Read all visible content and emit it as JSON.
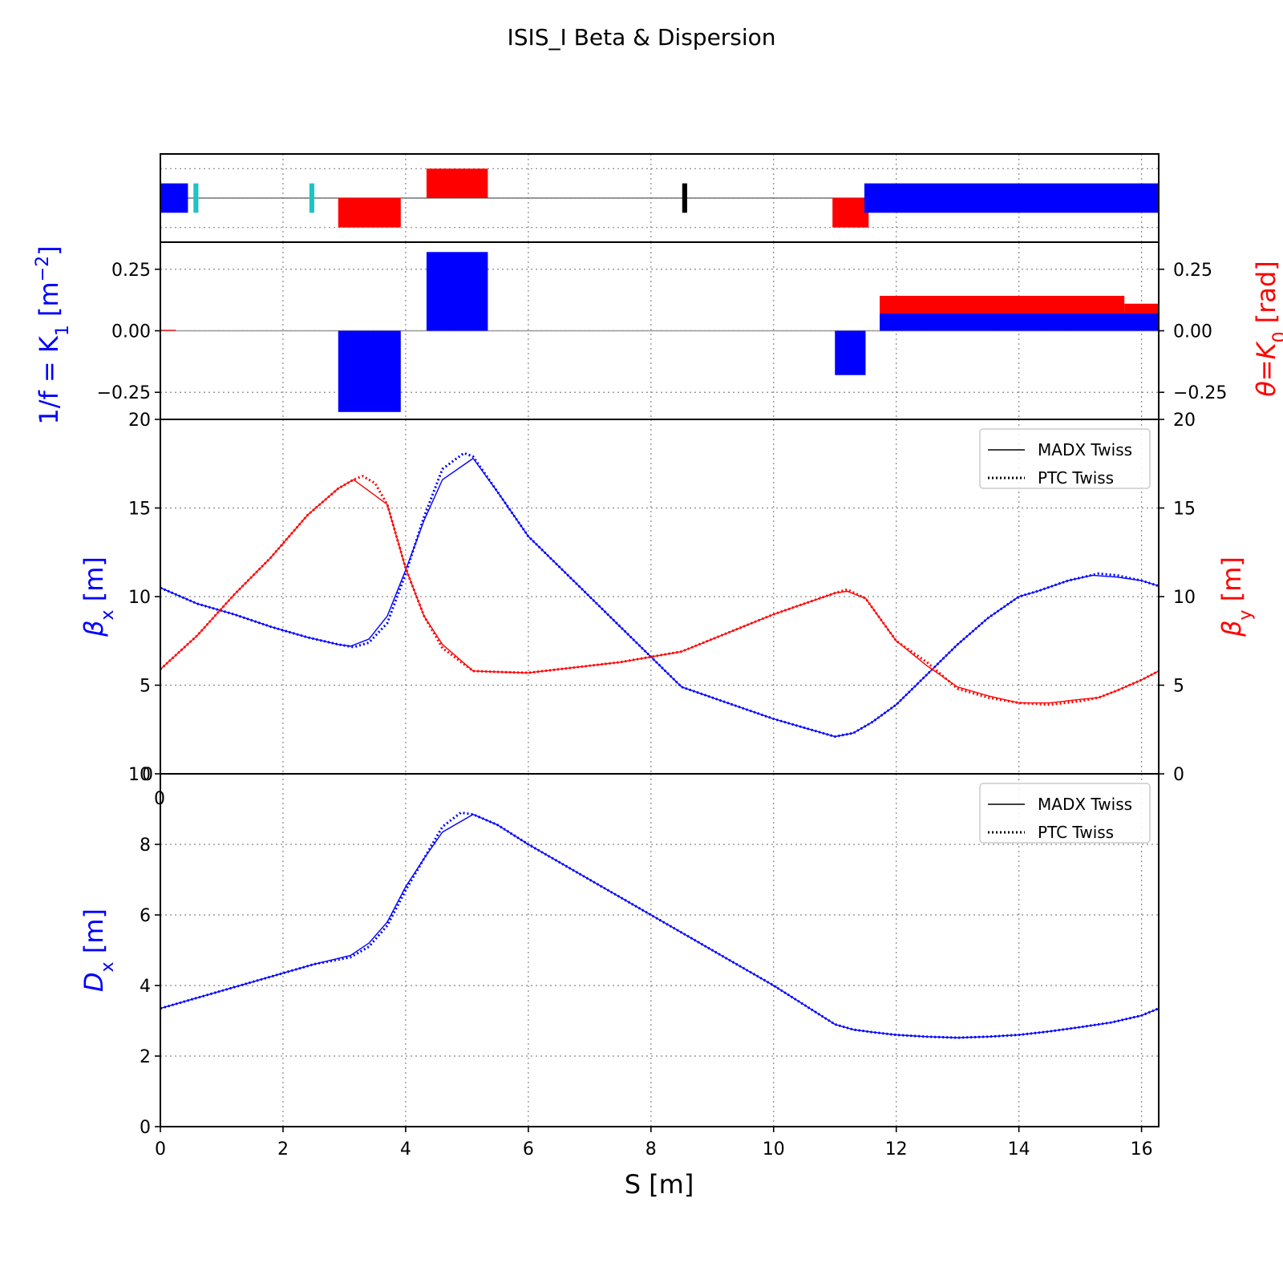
{
  "title": "ISIS_I Beta & Dispersion",
  "colors": {
    "blue": "#0000ff",
    "red": "#ff0000",
    "cyan": "#1fc3c3",
    "black": "#000000",
    "grid": "#888888"
  },
  "chart_data": [
    {
      "id": "layout",
      "type": "bar",
      "description_role": "lattice layout strip",
      "xlim": [
        0,
        16.28
      ],
      "ylim": [
        -1.5,
        1.5
      ],
      "grid": true,
      "elements": [
        {
          "kind": "quadrupole",
          "color": "blue",
          "s0": 0.0,
          "s1": 0.45,
          "y0": -0.5,
          "y1": 0.5
        },
        {
          "kind": "marker",
          "color": "cyan",
          "s0": 0.54,
          "s1": 0.62,
          "y0": -0.5,
          "y1": 0.5
        },
        {
          "kind": "marker",
          "color": "cyan",
          "s0": 2.43,
          "s1": 2.51,
          "y0": -0.5,
          "y1": 0.5
        },
        {
          "kind": "dipole",
          "color": "red",
          "s0": 2.9,
          "s1": 3.92,
          "y0": -1.0,
          "y1": 0.0
        },
        {
          "kind": "dipole",
          "color": "red",
          "s0": 4.34,
          "s1": 5.34,
          "y0": 0.0,
          "y1": 1.0
        },
        {
          "kind": "monitor",
          "color": "black",
          "s0": 8.51,
          "s1": 8.59,
          "y0": -0.5,
          "y1": 0.5
        },
        {
          "kind": "dipole",
          "color": "red",
          "s0": 10.96,
          "s1": 11.55,
          "y0": -1.0,
          "y1": 0.0
        },
        {
          "kind": "quadrupole",
          "color": "blue",
          "s0": 11.48,
          "s1": 16.28,
          "y0": -0.5,
          "y1": 0.5
        }
      ]
    },
    {
      "id": "strengths",
      "type": "bar",
      "ylabel_left": "1/f = K",
      "ylabel_left_sub": "1",
      "ylabel_left_unit_pre": " [m",
      "ylabel_left_unit_sup": "−2",
      "ylabel_left_unit_post": "]",
      "ylabel_right": "θ=K",
      "ylabel_right_sub": "0",
      "ylabel_right_unit": " [rad]",
      "xlim": [
        0,
        16.28
      ],
      "ylim": [
        -0.36,
        0.36
      ],
      "yticks": [
        -0.25,
        0.0,
        0.25
      ],
      "ytick_labels": [
        "−0.25",
        "0.00",
        "0.25"
      ],
      "grid": true,
      "k1_bars": [
        {
          "s0": 2.9,
          "s1": 3.92,
          "value": -0.33
        },
        {
          "s0": 4.34,
          "s1": 5.34,
          "value": 0.32
        },
        {
          "s0": 11.0,
          "s1": 11.5,
          "value": -0.18
        },
        {
          "s0": 11.73,
          "s1": 16.28,
          "value": 0.07
        },
        {
          "s0": 14.82,
          "s1": 16.28,
          "value": 0.055
        }
      ],
      "k0_bars": [
        {
          "s0": 0.0,
          "s1": 0.25,
          "value": 0.004
        },
        {
          "s0": 11.73,
          "s1": 15.72,
          "value": 0.142
        },
        {
          "s0": 14.82,
          "s1": 15.72,
          "value": 0.06
        },
        {
          "s0": 15.72,
          "s1": 16.28,
          "value": 0.11
        },
        {
          "s0": 15.98,
          "s1": 16.28,
          "value": 0.02
        }
      ]
    },
    {
      "id": "beta",
      "type": "line",
      "ylabel_left": "β",
      "ylabel_left_sub": "x",
      "ylabel_left_unit": " [m]",
      "ylabel_right": "β",
      "ylabel_right_sub": "y",
      "ylabel_right_unit": " [m]",
      "xlim": [
        0,
        16.28
      ],
      "ylim": [
        0,
        20
      ],
      "yticks": [
        0,
        5,
        10,
        15,
        20
      ],
      "grid": true,
      "legend": {
        "position": "upper-right",
        "entries": [
          {
            "label": "MADX Twiss",
            "style": "solid"
          },
          {
            "label": "PTC Twiss",
            "style": "dotted"
          }
        ]
      },
      "series": [
        {
          "name": "MADX Twiss",
          "axis": "beta_x",
          "color": "blue",
          "style": "solid",
          "x": [
            0,
            0.6,
            1.2,
            1.8,
            2.4,
            2.9,
            3.1,
            3.4,
            3.7,
            4.0,
            4.3,
            4.6,
            5.1,
            5.5,
            6.0,
            6.5,
            7.0,
            7.5,
            8.0,
            8.5,
            9.0,
            9.5,
            10.0,
            10.5,
            11.0,
            11.3,
            11.6,
            12.0,
            12.5,
            13.0,
            13.5,
            14.0,
            14.3,
            14.8,
            15.2,
            15.6,
            16.0,
            16.28
          ],
          "y": [
            10.5,
            9.6,
            9.0,
            8.3,
            7.7,
            7.3,
            7.2,
            7.6,
            8.9,
            11.5,
            14.3,
            16.6,
            17.8,
            15.9,
            13.4,
            11.7,
            10.0,
            8.3,
            6.6,
            4.9,
            4.3,
            3.7,
            3.1,
            2.6,
            2.1,
            2.3,
            2.9,
            3.9,
            5.6,
            7.3,
            8.8,
            10.0,
            10.3,
            10.9,
            11.2,
            11.1,
            10.9,
            10.6
          ]
        },
        {
          "name": "PTC Twiss",
          "axis": "beta_x",
          "color": "blue",
          "style": "dotted",
          "x": [
            0,
            0.6,
            1.2,
            1.8,
            2.4,
            2.9,
            3.15,
            3.4,
            3.7,
            4.0,
            4.3,
            4.6,
            4.95,
            5.1,
            5.5,
            6.0,
            6.5,
            7.0,
            7.5,
            8.0,
            8.5,
            9.0,
            9.5,
            10.0,
            10.5,
            11.0,
            11.3,
            11.6,
            12.0,
            12.5,
            13.0,
            13.5,
            14.0,
            14.3,
            14.8,
            15.3,
            15.6,
            16.0,
            16.28
          ],
          "y": [
            10.5,
            9.6,
            9.0,
            8.3,
            7.7,
            7.3,
            7.15,
            7.4,
            8.5,
            11.3,
            14.5,
            17.2,
            18.1,
            17.9,
            15.9,
            13.4,
            11.7,
            10.0,
            8.3,
            6.6,
            4.9,
            4.3,
            3.7,
            3.1,
            2.6,
            2.1,
            2.3,
            2.9,
            3.9,
            5.6,
            7.3,
            8.8,
            10.0,
            10.3,
            10.9,
            11.3,
            11.2,
            10.9,
            10.6
          ]
        },
        {
          "name": "MADX Twiss",
          "axis": "beta_y",
          "color": "red",
          "style": "solid",
          "x": [
            0,
            0.6,
            1.2,
            1.8,
            2.4,
            2.9,
            3.15,
            3.7,
            4.0,
            4.3,
            4.6,
            5.1,
            5.5,
            6.0,
            6.5,
            7.0,
            7.5,
            8.0,
            8.5,
            9.0,
            9.5,
            10.0,
            10.5,
            11.0,
            11.2,
            11.5,
            12.0,
            12.5,
            13.0,
            13.5,
            14.0,
            14.5,
            15.0,
            15.3,
            15.6,
            16.0,
            16.28
          ],
          "y": [
            5.9,
            7.8,
            10.1,
            12.2,
            14.6,
            16.1,
            16.6,
            15.2,
            11.6,
            8.9,
            7.3,
            5.8,
            5.75,
            5.7,
            5.9,
            6.1,
            6.3,
            6.6,
            6.9,
            7.6,
            8.3,
            9.0,
            9.6,
            10.2,
            10.3,
            9.9,
            7.5,
            6.1,
            4.9,
            4.4,
            4.0,
            4.0,
            4.2,
            4.3,
            4.7,
            5.3,
            5.8
          ]
        },
        {
          "name": "PTC Twiss",
          "axis": "beta_y",
          "color": "red",
          "style": "dotted",
          "x": [
            0,
            0.6,
            1.2,
            1.8,
            2.4,
            2.9,
            3.15,
            3.3,
            3.5,
            3.7,
            4.0,
            4.3,
            4.6,
            5.1,
            5.5,
            6.0,
            6.5,
            7.0,
            7.5,
            8.0,
            8.5,
            9.0,
            9.5,
            10.0,
            10.5,
            11.0,
            11.2,
            11.5,
            12.0,
            12.5,
            13.0,
            13.5,
            14.0,
            14.5,
            15.0,
            15.3,
            15.6,
            16.0,
            16.28
          ],
          "y": [
            5.9,
            7.8,
            10.1,
            12.2,
            14.6,
            16.1,
            16.6,
            16.8,
            16.4,
            15.2,
            11.6,
            8.9,
            7.1,
            5.8,
            5.75,
            5.7,
            5.9,
            6.1,
            6.3,
            6.6,
            6.9,
            7.6,
            8.3,
            9.0,
            9.6,
            10.2,
            10.4,
            9.9,
            7.5,
            6.3,
            4.8,
            4.3,
            4.0,
            3.9,
            4.1,
            4.3,
            4.7,
            5.3,
            5.8
          ]
        }
      ]
    },
    {
      "id": "dispersion",
      "type": "line",
      "xlabel": "S [m]",
      "ylabel_left": "D",
      "ylabel_left_sub": "x",
      "ylabel_left_unit": " [m]",
      "xlim": [
        0,
        16.28
      ],
      "ylim": [
        0,
        10
      ],
      "xticks": [
        0,
        2,
        4,
        6,
        8,
        10,
        12,
        14,
        16
      ],
      "yticks": [
        0,
        2,
        4,
        6,
        8,
        10
      ],
      "grid": true,
      "overlapping_tick_labels": [
        "0",
        "10"
      ],
      "legend": {
        "position": "upper-right",
        "entries": [
          {
            "label": "MADX Twiss",
            "style": "solid"
          },
          {
            "label": "PTC Twiss",
            "style": "dotted"
          }
        ]
      },
      "series": [
        {
          "name": "MADX Twiss",
          "color": "blue",
          "style": "solid",
          "x": [
            0,
            0.5,
            1.0,
            1.5,
            2.0,
            2.5,
            3.1,
            3.4,
            3.7,
            4.0,
            4.3,
            4.6,
            5.1,
            5.5,
            6.0,
            6.5,
            7.0,
            7.5,
            8.0,
            8.5,
            9.0,
            9.5,
            10.0,
            10.5,
            11.0,
            11.3,
            11.6,
            12.0,
            12.5,
            13.0,
            13.5,
            14.0,
            14.5,
            15.0,
            15.5,
            16.0,
            16.28
          ],
          "y": [
            3.35,
            3.6,
            3.85,
            4.1,
            4.35,
            4.6,
            4.85,
            5.2,
            5.8,
            6.8,
            7.6,
            8.35,
            8.85,
            8.55,
            8.0,
            7.5,
            7.0,
            6.5,
            6.0,
            5.5,
            5.0,
            4.5,
            4.0,
            3.45,
            2.9,
            2.75,
            2.68,
            2.6,
            2.55,
            2.52,
            2.55,
            2.6,
            2.7,
            2.82,
            2.95,
            3.15,
            3.35
          ]
        },
        {
          "name": "PTC Twiss",
          "color": "blue",
          "style": "dotted",
          "x": [
            0,
            0.5,
            1.0,
            1.5,
            2.0,
            2.5,
            3.1,
            3.4,
            3.7,
            4.0,
            4.3,
            4.6,
            4.9,
            5.1,
            5.5,
            6.0,
            6.5,
            7.0,
            7.5,
            8.0,
            8.5,
            9.0,
            9.5,
            10.0,
            10.5,
            11.0,
            11.3,
            11.6,
            12.0,
            12.5,
            13.0,
            13.5,
            14.0,
            14.5,
            15.0,
            15.5,
            16.0,
            16.28
          ],
          "y": [
            3.35,
            3.6,
            3.85,
            4.1,
            4.35,
            4.6,
            4.8,
            5.1,
            5.7,
            6.7,
            7.6,
            8.5,
            8.9,
            8.85,
            8.55,
            8.0,
            7.5,
            7.0,
            6.5,
            6.0,
            5.5,
            5.0,
            4.5,
            4.0,
            3.45,
            2.9,
            2.75,
            2.68,
            2.6,
            2.55,
            2.52,
            2.55,
            2.6,
            2.7,
            2.82,
            2.95,
            3.15,
            3.35
          ]
        }
      ]
    }
  ]
}
